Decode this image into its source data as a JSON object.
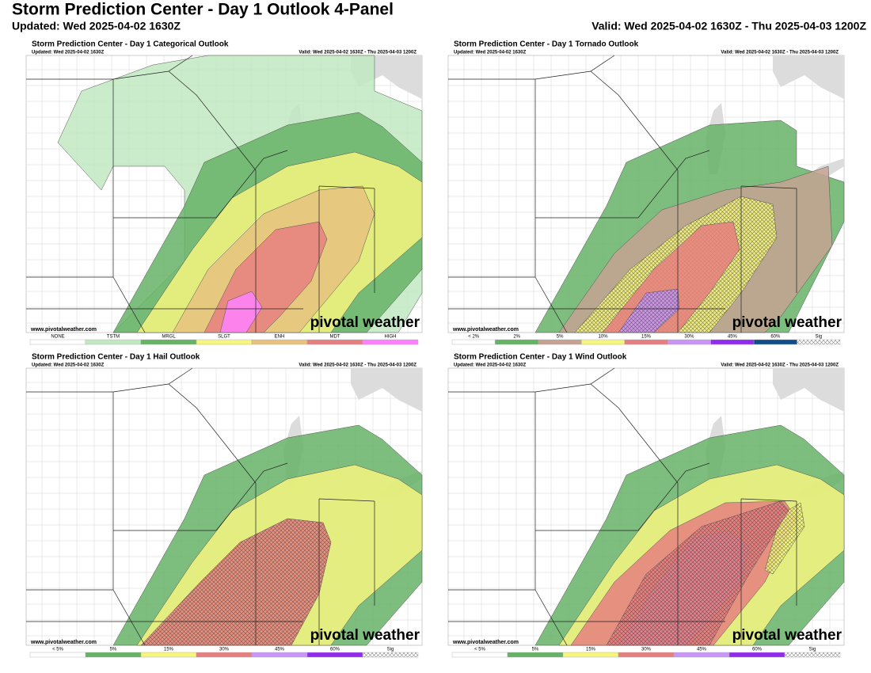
{
  "header": {
    "title": "Storm Prediction Center - Day 1 Outlook 4-Panel",
    "updated": "Updated: Wed 2025-04-02 1630Z",
    "valid": "Valid: Wed 2025-04-02 1630Z - Thu 2025-04-03 1200Z"
  },
  "panels": [
    {
      "title": "Storm Prediction Center - Day 1 Categorical Outlook",
      "updated": "Updated: Wed 2025-04-02 1630Z",
      "valid": "Valid: Wed 2025-04-02 1630Z - Thu 2025-04-03 1200Z",
      "credit": "www.pivotalweather.com",
      "brand": "pivotal weather",
      "legend": [
        {
          "label": "NONE",
          "color": "#ffffff"
        },
        {
          "label": "TSTM",
          "color": "#c1e9c1"
        },
        {
          "label": "MRGL",
          "color": "#66b266"
        },
        {
          "label": "SLGT",
          "color": "#f6f67f"
        },
        {
          "label": "ENH",
          "color": "#e6c27f"
        },
        {
          "label": "MDT",
          "color": "#e67f7f"
        },
        {
          "label": "HIGH",
          "color": "#ff80ff"
        }
      ]
    },
    {
      "title": "Storm Prediction Center - Day 1 Tornado Outlook",
      "updated": "Updated: Wed 2025-04-02 1630Z",
      "valid": "Valid: Wed 2025-04-02 1630Z - Thu 2025-04-03 1200Z",
      "credit": "www.pivotalweather.com",
      "brand": "pivotal weather",
      "legend": [
        {
          "label": "< 2%",
          "color": "#ffffff"
        },
        {
          "label": "2%",
          "color": "#66b266"
        },
        {
          "label": "5%",
          "color": "#c5a393"
        },
        {
          "label": "10%",
          "color": "#f6f67f"
        },
        {
          "label": "15%",
          "color": "#e67f7f"
        },
        {
          "label": "30%",
          "color": "#c896f7"
        },
        {
          "label": "45%",
          "color": "#912cee"
        },
        {
          "label": "60%",
          "color": "#104e8b"
        },
        {
          "label": "Sig",
          "color": "hatch"
        }
      ]
    },
    {
      "title": "Storm Prediction Center - Day 1 Hail Outlook",
      "updated": "Updated: Wed 2025-04-02 1630Z",
      "valid": "Valid: Wed 2025-04-02 1630Z - Thu 2025-04-03 1200Z",
      "credit": "www.pivotalweather.com",
      "brand": "pivotal weather",
      "legend": [
        {
          "label": "< 5%",
          "color": "#ffffff"
        },
        {
          "label": "5%",
          "color": "#66b266"
        },
        {
          "label": "15%",
          "color": "#f6f67f"
        },
        {
          "label": "30%",
          "color": "#e67f7f"
        },
        {
          "label": "45%",
          "color": "#c896f7"
        },
        {
          "label": "60%",
          "color": "#912cee"
        },
        {
          "label": "Sig",
          "color": "hatch"
        }
      ]
    },
    {
      "title": "Storm Prediction Center - Day 1 Wind Outlook",
      "updated": "Updated: Wed 2025-04-02 1630Z",
      "valid": "Valid: Wed 2025-04-02 1630Z - Thu 2025-04-03 1200Z",
      "credit": "www.pivotalweather.com",
      "brand": "pivotal weather",
      "legend": [
        {
          "label": "< 5%",
          "color": "#ffffff"
        },
        {
          "label": "5%",
          "color": "#66b266"
        },
        {
          "label": "15%",
          "color": "#f6f67f"
        },
        {
          "label": "30%",
          "color": "#e67f7f"
        },
        {
          "label": "45%",
          "color": "#c896f7"
        },
        {
          "label": "60%",
          "color": "#912cee"
        },
        {
          "label": "Sig",
          "color": "hatch"
        }
      ]
    }
  ]
}
